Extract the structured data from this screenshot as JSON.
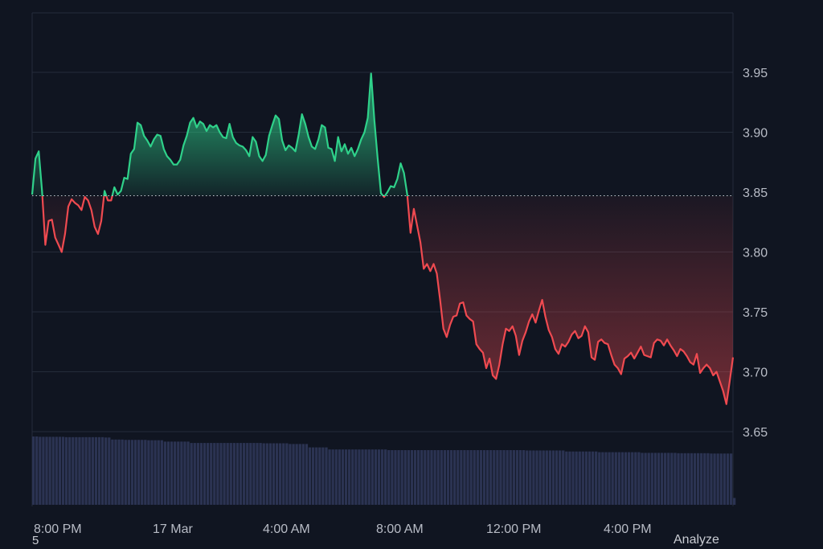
{
  "chart_data": {
    "type": "area",
    "baseline": 3.847,
    "ylim": [
      3.59,
      3.99
    ],
    "yticks": [
      3.65,
      3.7,
      3.75,
      3.8,
      3.85,
      3.9,
      3.95
    ],
    "ytick_labels": [
      "3.65",
      "3.70",
      "3.75",
      "3.80",
      "3.85",
      "3.90",
      "3.95"
    ],
    "xtick_labels": [
      "8:00 PM",
      "17 Mar",
      "4:00 AM",
      "8:00 AM",
      "12:00 PM",
      "4:00 PM"
    ],
    "grid": true,
    "colors": {
      "background": "#101521",
      "grid": "#252c3a",
      "above": "#2fd18a",
      "below": "#ef4a50",
      "baseline": "#c9ccd3",
      "volume": "#2b3352"
    },
    "price": [
      3.848,
      3.878,
      3.884,
      3.851,
      3.806,
      3.826,
      3.827,
      3.812,
      3.806,
      3.8,
      3.815,
      3.838,
      3.844,
      3.841,
      3.839,
      3.835,
      3.846,
      3.843,
      3.835,
      3.821,
      3.815,
      3.826,
      3.851,
      3.843,
      3.843,
      3.854,
      3.848,
      3.851,
      3.862,
      3.861,
      3.882,
      3.886,
      3.908,
      3.906,
      3.897,
      3.893,
      3.888,
      3.894,
      3.898,
      3.897,
      3.886,
      3.88,
      3.877,
      3.873,
      3.873,
      3.877,
      3.889,
      3.897,
      3.908,
      3.912,
      3.904,
      3.909,
      3.907,
      3.901,
      3.906,
      3.904,
      3.906,
      3.9,
      3.896,
      3.895,
      3.907,
      3.896,
      3.891,
      3.889,
      3.888,
      3.885,
      3.88,
      3.896,
      3.892,
      3.88,
      3.876,
      3.881,
      3.897,
      3.906,
      3.914,
      3.911,
      3.893,
      3.885,
      3.889,
      3.887,
      3.884,
      3.898,
      3.915,
      3.907,
      3.896,
      3.888,
      3.886,
      3.894,
      3.906,
      3.904,
      3.887,
      3.886,
      3.876,
      3.896,
      3.884,
      3.89,
      3.882,
      3.887,
      3.88,
      3.886,
      3.894,
      3.9,
      3.912,
      3.949,
      3.91,
      3.878,
      3.849,
      3.846,
      3.85,
      3.855,
      3.854,
      3.861,
      3.874,
      3.866,
      3.848,
      3.816,
      3.836,
      3.822,
      3.808,
      3.786,
      3.79,
      3.784,
      3.79,
      3.782,
      3.76,
      3.736,
      3.729,
      3.739,
      3.746,
      3.747,
      3.757,
      3.758,
      3.747,
      3.744,
      3.742,
      3.723,
      3.719,
      3.716,
      3.703,
      3.711,
      3.697,
      3.694,
      3.706,
      3.723,
      3.736,
      3.734,
      3.738,
      3.73,
      3.714,
      3.726,
      3.733,
      3.742,
      3.748,
      3.741,
      3.751,
      3.76,
      3.746,
      3.735,
      3.729,
      3.719,
      3.715,
      3.723,
      3.721,
      3.725,
      3.731,
      3.734,
      3.728,
      3.73,
      3.738,
      3.733,
      3.712,
      3.71,
      3.725,
      3.727,
      3.724,
      3.723,
      3.714,
      3.706,
      3.703,
      3.698,
      3.711,
      3.713,
      3.716,
      3.711,
      3.716,
      3.721,
      3.714,
      3.713,
      3.712,
      3.724,
      3.727,
      3.726,
      3.722,
      3.727,
      3.722,
      3.718,
      3.713,
      3.719,
      3.717,
      3.713,
      3.708,
      3.706,
      3.715,
      3.699,
      3.703,
      3.706,
      3.703,
      3.697,
      3.7,
      3.692,
      3.684,
      3.673,
      3.692,
      3.712
    ],
    "volume_levels": [
      [
        0,
        1.0
      ],
      [
        2,
        0.995
      ],
      [
        10,
        0.99
      ],
      [
        22,
        0.985
      ],
      [
        24,
        0.955
      ],
      [
        28,
        0.95
      ],
      [
        35,
        0.945
      ],
      [
        40,
        0.925
      ],
      [
        48,
        0.905
      ],
      [
        70,
        0.9
      ],
      [
        78,
        0.89
      ],
      [
        84,
        0.84
      ],
      [
        90,
        0.81
      ],
      [
        108,
        0.8
      ],
      [
        120,
        0.8
      ],
      [
        150,
        0.795
      ],
      [
        162,
        0.78
      ],
      [
        172,
        0.77
      ],
      [
        185,
        0.76
      ],
      [
        196,
        0.755
      ],
      [
        206,
        0.75
      ],
      [
        219,
        0.75
      ]
    ],
    "volume_zero_last": true
  },
  "footer": {
    "left": "5",
    "right": "Analyze"
  }
}
